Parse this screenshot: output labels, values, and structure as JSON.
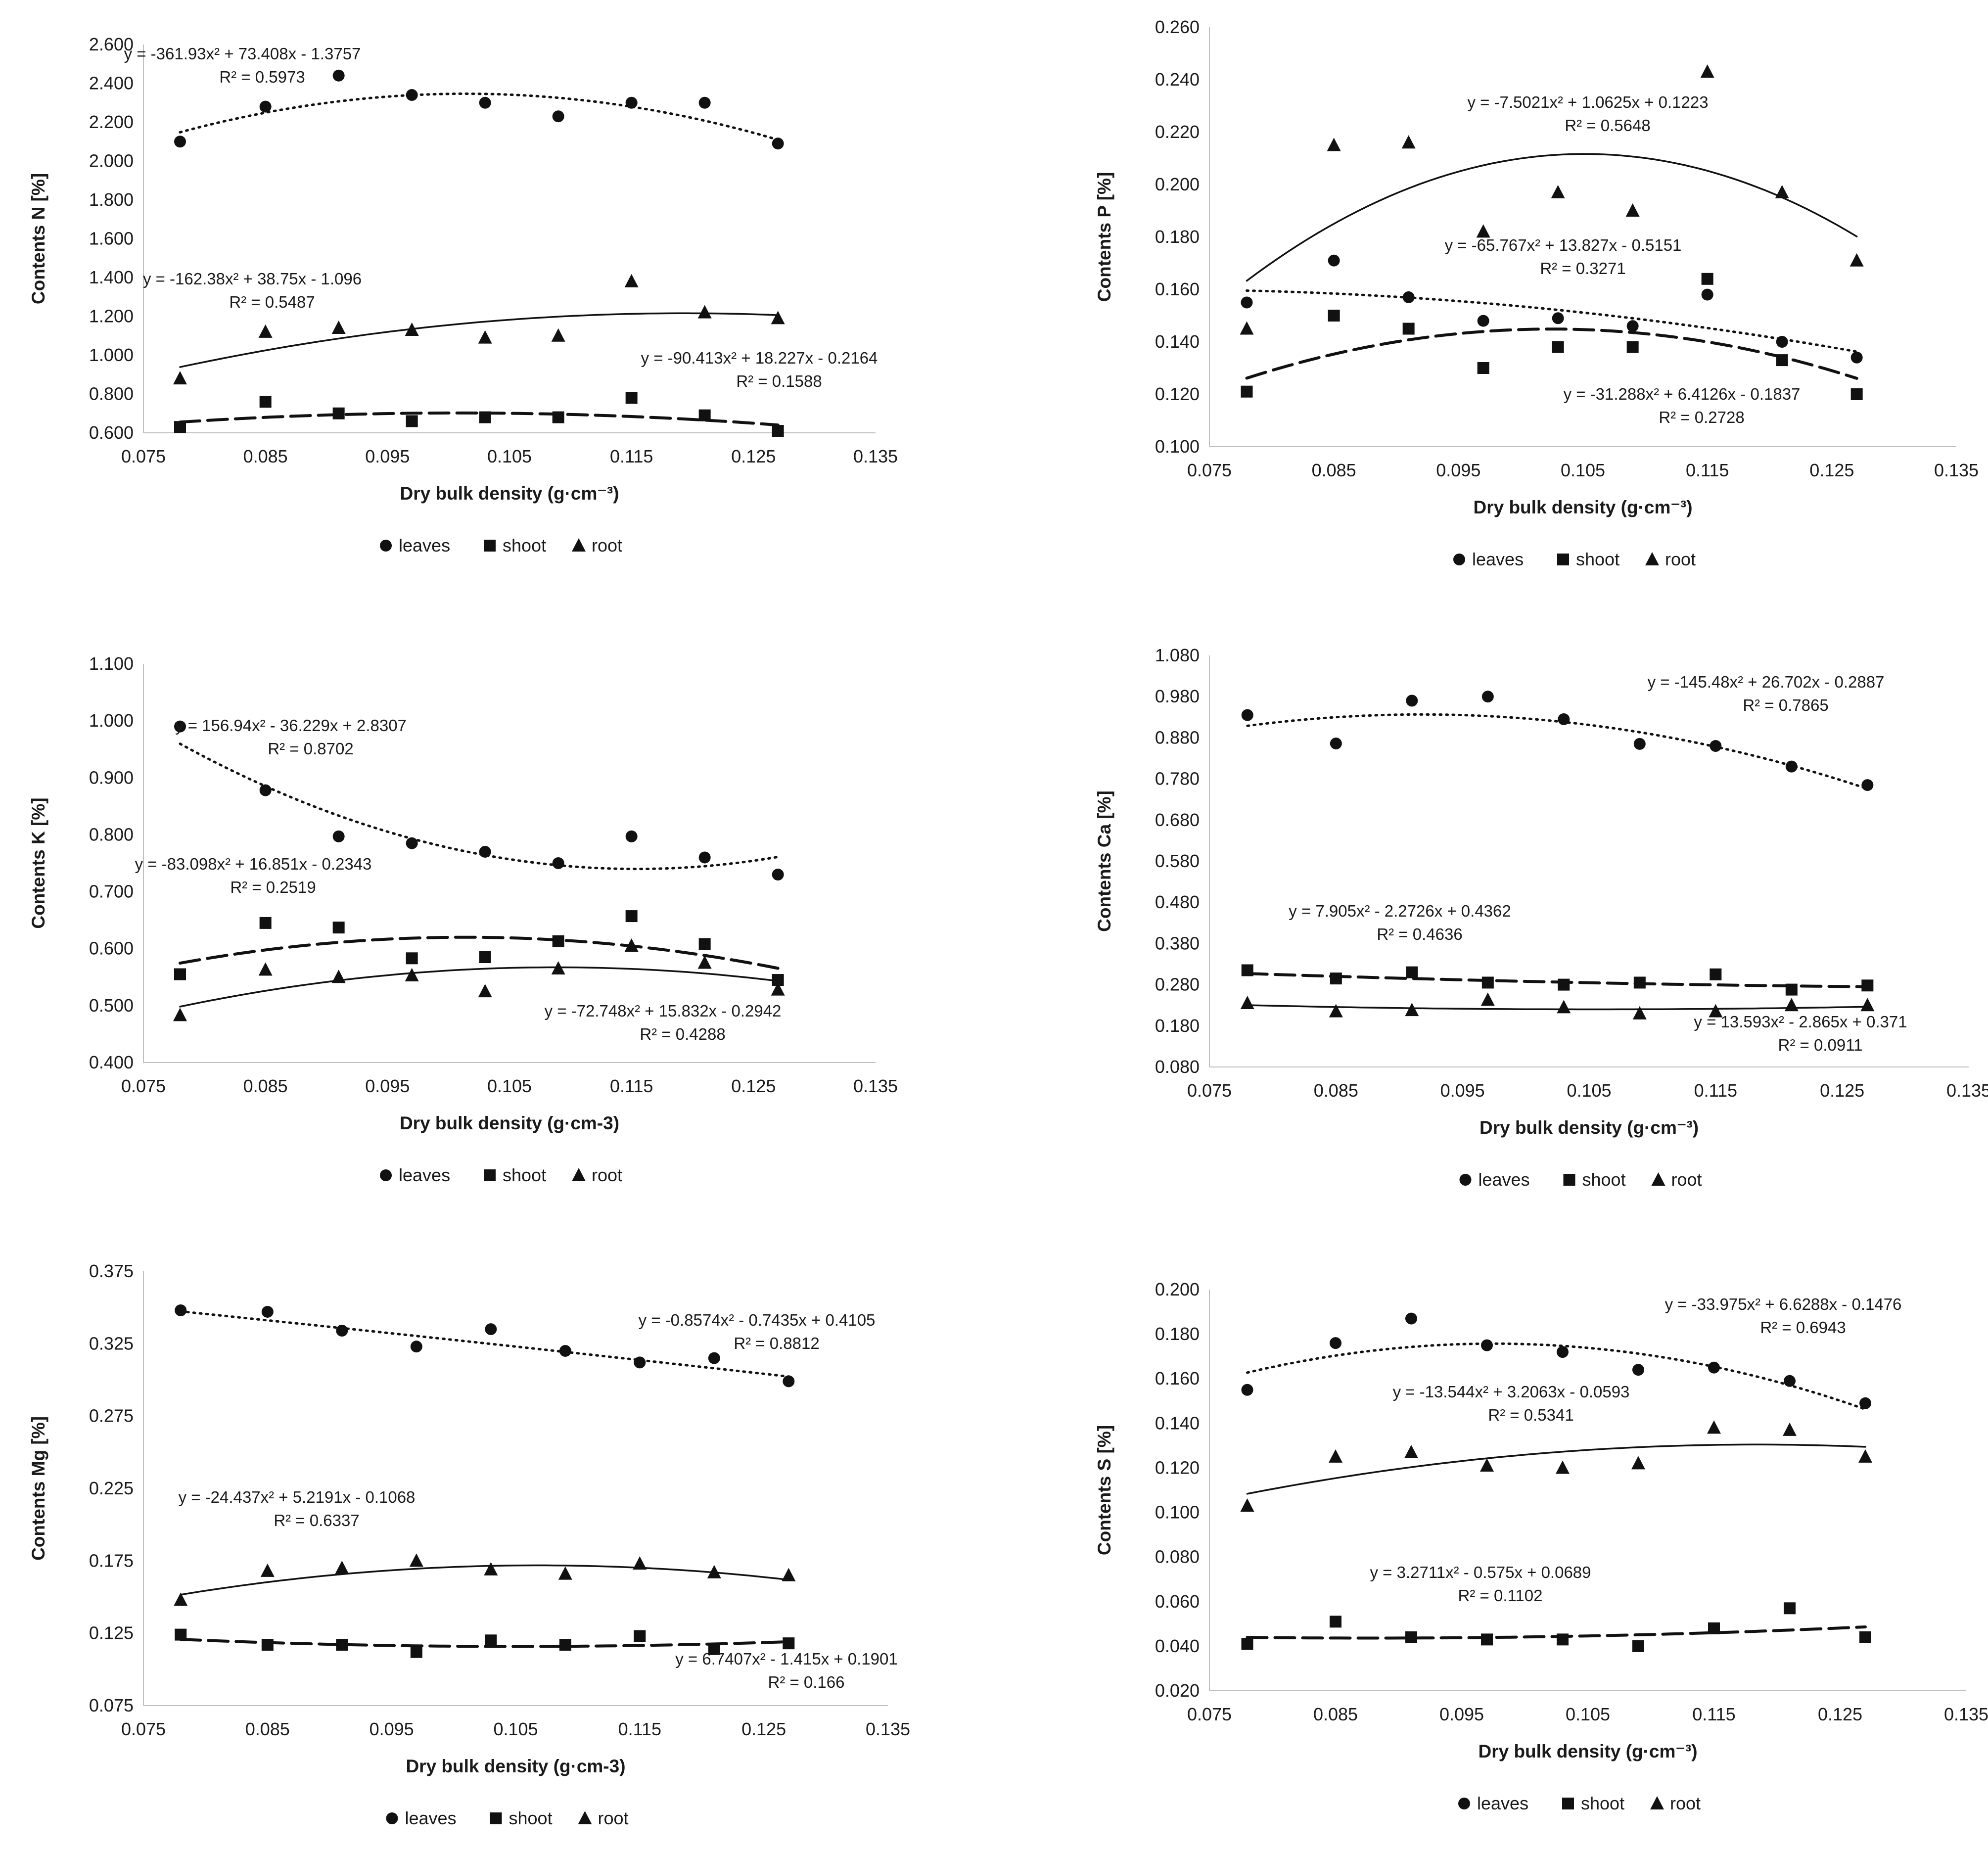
{
  "legend": {
    "leaves": "leaves",
    "shoot": "shoot",
    "root": "root"
  },
  "chart_data": [
    {
      "type": "scatter",
      "id": "N",
      "ylabel": "Contents N [%]",
      "xlabel": "Dry bulk density (g·cm⁻³)",
      "xlim": [
        0.075,
        0.135
      ],
      "ylim": [
        0.6,
        2.6
      ],
      "x_ticks": [
        "0.075",
        "0.085",
        "0.095",
        "0.105",
        "0.115",
        "0.125",
        "0.135"
      ],
      "y_ticks": [
        "0.600",
        "0.800",
        "1.000",
        "1.200",
        "1.400",
        "1.600",
        "1.800",
        "2.000",
        "2.200",
        "2.400",
        "2.600"
      ],
      "x": [
        0.078,
        0.085,
        0.091,
        0.097,
        0.103,
        0.109,
        0.115,
        0.121,
        0.127
      ],
      "series": [
        {
          "name": "leaves",
          "marker": "circle",
          "values": [
            2.1,
            2.28,
            2.44,
            2.34,
            2.3,
            2.23,
            2.3,
            2.3,
            2.09
          ],
          "trend": {
            "a": -361.93,
            "b": 73.408,
            "c": -1.3757
          },
          "equation": "y = -361.93x² + 73.408x - 1.3757",
          "r2": "R² = 0.5973"
        },
        {
          "name": "shoot",
          "marker": "square",
          "values": [
            0.63,
            0.76,
            0.7,
            0.66,
            0.68,
            0.68,
            0.78,
            0.69,
            0.61
          ],
          "trend": {
            "a": -90.413,
            "b": 18.227,
            "c": -0.2164
          },
          "equation": "y = -90.413x² + 18.227x - 0.2164",
          "r2": "R² = 0.1588"
        },
        {
          "name": "root",
          "marker": "triangle",
          "values": [
            0.88,
            1.12,
            1.14,
            1.13,
            1.09,
            1.1,
            1.38,
            1.22,
            1.19
          ],
          "trend": {
            "a": -162.38,
            "b": 38.75,
            "c": -1.096
          },
          "equation": "y = -162.38x² + 38.75x - 1.096",
          "r2": "R² = 0.5487"
        }
      ]
    },
    {
      "type": "scatter",
      "id": "P",
      "ylabel": "Contents P [%]",
      "xlabel": "Dry bulk density (g·cm⁻³)",
      "xlim": [
        0.075,
        0.135
      ],
      "ylim": [
        0.1,
        0.26
      ],
      "x_ticks": [
        "0.075",
        "0.085",
        "0.095",
        "0.105",
        "0.115",
        "0.125",
        "0.135"
      ],
      "y_ticks": [
        "0.100",
        "0.120",
        "0.140",
        "0.160",
        "0.180",
        "0.200",
        "0.220",
        "0.240",
        "0.260"
      ],
      "x": [
        0.078,
        0.085,
        0.091,
        0.097,
        0.103,
        0.109,
        0.115,
        0.121,
        0.127
      ],
      "series": [
        {
          "name": "leaves",
          "marker": "circle",
          "values": [
            0.155,
            0.171,
            0.157,
            0.148,
            0.149,
            0.146,
            0.158,
            0.14,
            0.134
          ],
          "trend": {
            "a": -7.5021,
            "b": 1.0625,
            "c": 0.1223
          },
          "equation": "y = -7.5021x² + 1.0625x + 0.1223",
          "r2": "R² = 0.5648"
        },
        {
          "name": "shoot",
          "marker": "square",
          "values": [
            0.121,
            0.15,
            0.145,
            0.13,
            0.138,
            0.138,
            0.164,
            0.133,
            0.12
          ],
          "trend": {
            "a": -31.288,
            "b": 6.4126,
            "c": -0.1837
          },
          "equation": "y = -31.288x² + 6.4126x - 0.1837",
          "r2": "R² = 0.2728"
        },
        {
          "name": "root",
          "marker": "triangle",
          "values": [
            0.145,
            0.215,
            0.216,
            0.182,
            0.197,
            0.19,
            0.243,
            0.197,
            0.171
          ],
          "trend": {
            "a": -65.767,
            "b": 13.827,
            "c": -0.5151
          },
          "equation": "y = -65.767x² + 13.827x - 0.5151",
          "r2": "R² = 0.3271"
        }
      ]
    },
    {
      "type": "scatter",
      "id": "K",
      "ylabel": "Contents K [%]",
      "xlabel": "Dry bulk density (g·cm-3)",
      "xlim": [
        0.075,
        0.135
      ],
      "ylim": [
        0.4,
        1.1
      ],
      "x_ticks": [
        "0.075",
        "0.085",
        "0.095",
        "0.105",
        "0.115",
        "0.125",
        "0.135"
      ],
      "y_ticks": [
        "0.400",
        "0.500",
        "0.600",
        "0.700",
        "0.800",
        "0.900",
        "1.000",
        "1.100"
      ],
      "x": [
        0.078,
        0.085,
        0.091,
        0.097,
        0.103,
        0.109,
        0.115,
        0.121,
        0.127
      ],
      "series": [
        {
          "name": "leaves",
          "marker": "circle",
          "values": [
            0.99,
            0.878,
            0.797,
            0.785,
            0.77,
            0.75,
            0.797,
            0.76,
            0.73
          ],
          "trend": {
            "a": 156.94,
            "b": -36.229,
            "c": 2.8307
          },
          "equation": "y = 156.94x² - 36.229x + 2.8307",
          "r2": "R² = 0.8702"
        },
        {
          "name": "shoot",
          "marker": "square",
          "values": [
            0.555,
            0.645,
            0.637,
            0.583,
            0.585,
            0.613,
            0.657,
            0.608,
            0.545
          ],
          "trend": {
            "a": -83.098,
            "b": 16.851,
            "c": -0.2343
          },
          "equation": "y = -83.098x² + 16.851x - 0.2343",
          "r2": "R² = 0.2519"
        },
        {
          "name": "root",
          "marker": "triangle",
          "values": [
            0.483,
            0.563,
            0.55,
            0.553,
            0.525,
            0.565,
            0.605,
            0.575,
            0.528
          ],
          "trend": {
            "a": -72.748,
            "b": 15.832,
            "c": -0.2942
          },
          "equation": "y = -72.748x² + 15.832x - 0.2942",
          "r2": "R² = 0.4288"
        }
      ]
    },
    {
      "type": "scatter",
      "id": "Ca",
      "ylabel": "Contents Ca [%]",
      "xlabel": "Dry bulk density (g·cm⁻³)",
      "xlim": [
        0.075,
        0.135
      ],
      "ylim": [
        0.08,
        1.08
      ],
      "x_ticks": [
        "0.075",
        "0.085",
        "0.095",
        "0.105",
        "0.115",
        "0.125",
        "0.135"
      ],
      "y_ticks": [
        "0.080",
        "0.180",
        "0.280",
        "0.380",
        "0.480",
        "0.580",
        "0.680",
        "0.780",
        "0.880",
        "0.980",
        "1.080"
      ],
      "x": [
        0.078,
        0.085,
        0.091,
        0.097,
        0.103,
        0.109,
        0.115,
        0.121,
        0.127
      ],
      "series": [
        {
          "name": "leaves",
          "marker": "circle",
          "values": [
            0.935,
            0.866,
            0.97,
            0.98,
            0.925,
            0.865,
            0.86,
            0.81,
            0.765
          ],
          "trend": {
            "a": -145.48,
            "b": 26.702,
            "c": -0.2887
          },
          "equation": "y = -145.48x² + 26.702x - 0.2887",
          "r2": "R² = 0.7865"
        },
        {
          "name": "shoot",
          "marker": "square",
          "values": [
            0.315,
            0.295,
            0.31,
            0.285,
            0.28,
            0.285,
            0.305,
            0.268,
            0.278
          ],
          "trend": {
            "a": 7.905,
            "b": -2.2726,
            "c": 0.4362
          },
          "equation": "y = 7.905x² - 2.2726x + 0.4362",
          "r2": "R² = 0.4636"
        },
        {
          "name": "root",
          "marker": "triangle",
          "values": [
            0.235,
            0.215,
            0.218,
            0.243,
            0.225,
            0.21,
            0.215,
            0.23,
            0.23
          ],
          "trend": {
            "a": 13.593,
            "b": -2.865,
            "c": 0.371
          },
          "equation": "y = 13.593x² - 2.865x + 0.371",
          "r2": "R² = 0.0911"
        }
      ]
    },
    {
      "type": "scatter",
      "id": "Mg",
      "ylabel": "Contents Mg [%]",
      "xlabel": "Dry bulk density (g·cm-3)",
      "xlim": [
        0.075,
        0.135
      ],
      "ylim": [
        0.075,
        0.375
      ],
      "x_ticks": [
        "0.075",
        "0.085",
        "0.095",
        "0.105",
        "0.115",
        "0.125",
        "0.135"
      ],
      "y_ticks": [
        "0.075",
        "0.125",
        "0.175",
        "0.225",
        "0.275",
        "0.325",
        "0.375"
      ],
      "x": [
        0.078,
        0.085,
        0.091,
        0.097,
        0.103,
        0.109,
        0.115,
        0.121,
        0.127
      ],
      "series": [
        {
          "name": "leaves",
          "marker": "circle",
          "values": [
            0.348,
            0.347,
            0.334,
            0.323,
            0.335,
            0.32,
            0.312,
            0.315,
            0.299
          ],
          "trend": {
            "a": -0.8574,
            "b": -0.7435,
            "c": 0.4105
          },
          "equation": "y = -0.8574x² - 0.7435x + 0.4105",
          "r2": "R² = 0.8812"
        },
        {
          "name": "shoot",
          "marker": "square",
          "values": [
            0.124,
            0.117,
            0.117,
            0.112,
            0.12,
            0.117,
            0.123,
            0.114,
            0.118
          ],
          "trend": {
            "a": 6.7407,
            "b": -1.415,
            "c": 0.1901
          },
          "equation": "y = 6.7407x² - 1.415x + 0.1901",
          "r2": "R² = 0.166"
        },
        {
          "name": "root",
          "marker": "triangle",
          "values": [
            0.148,
            0.168,
            0.17,
            0.175,
            0.169,
            0.166,
            0.173,
            0.167,
            0.165
          ],
          "trend": {
            "a": -24.437,
            "b": 5.2191,
            "c": -0.1068
          },
          "equation": "y = -24.437x² + 5.2191x - 0.1068",
          "r2": "R² = 0.6337"
        }
      ]
    },
    {
      "type": "scatter",
      "id": "S",
      "ylabel": "Contents S [%]",
      "xlabel": "Dry bulk density (g·cm⁻³)",
      "xlim": [
        0.075,
        0.135
      ],
      "ylim": [
        0.02,
        0.2
      ],
      "x_ticks": [
        "0.075",
        "0.085",
        "0.095",
        "0.105",
        "0.115",
        "0.125",
        "0.135"
      ],
      "y_ticks": [
        "0.020",
        "0.040",
        "0.060",
        "0.080",
        "0.100",
        "0.120",
        "0.140",
        "0.160",
        "0.180",
        "0.200"
      ],
      "x": [
        0.078,
        0.085,
        0.091,
        0.097,
        0.103,
        0.109,
        0.115,
        0.121,
        0.127
      ],
      "series": [
        {
          "name": "leaves",
          "marker": "circle",
          "values": [
            0.155,
            0.176,
            0.187,
            0.175,
            0.172,
            0.164,
            0.165,
            0.159,
            0.149
          ],
          "trend": {
            "a": -33.975,
            "b": 6.6288,
            "c": -0.1476
          },
          "equation": "y = -33.975x² + 6.6288x - 0.1476",
          "r2": "R² = 0.6943"
        },
        {
          "name": "shoot",
          "marker": "square",
          "values": [
            0.041,
            0.051,
            0.044,
            0.043,
            0.043,
            0.04,
            0.048,
            0.057,
            0.044
          ],
          "trend": {
            "a": 3.2711,
            "b": -0.575,
            "c": 0.0689
          },
          "equation": "y = 3.2711x² - 0.575x + 0.0689",
          "r2": "R² = 0.1102"
        },
        {
          "name": "root",
          "marker": "triangle",
          "values": [
            0.103,
            0.125,
            0.127,
            0.121,
            0.12,
            0.122,
            0.138,
            0.137,
            0.125
          ],
          "trend": {
            "a": -13.544,
            "b": 3.2063,
            "c": -0.0593
          },
          "equation": "y = -13.544x² + 3.2063x - 0.0593",
          "r2": "R² = 0.5341"
        }
      ]
    }
  ]
}
